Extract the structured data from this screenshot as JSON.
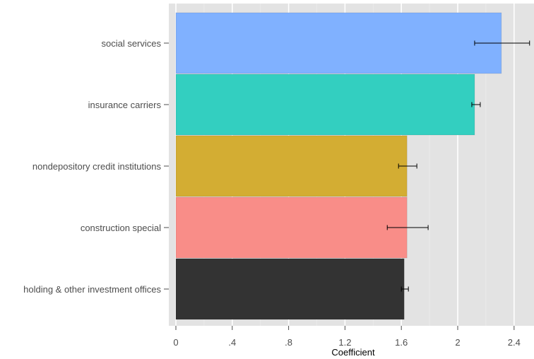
{
  "chart_data": {
    "type": "bar",
    "orientation": "horizontal",
    "title": "",
    "xlabel": "Coefficient",
    "ylabel": "",
    "xlim": [
      -0.05,
      2.55
    ],
    "x_ticks": [
      0,
      0.4,
      0.8,
      1.2,
      1.6,
      2,
      2.4
    ],
    "x_tick_labels": [
      "0",
      ".4",
      ".8",
      "1.2",
      "1.6",
      "2",
      "2.4"
    ],
    "grid": true,
    "legend": "none",
    "categories": [
      "social services",
      "insurance carriers",
      "nondepository credit institutions",
      "construction special",
      "holding & other investment offices"
    ],
    "values": [
      2.31,
      2.12,
      1.64,
      1.64,
      1.62
    ],
    "error_low": [
      2.12,
      2.1,
      1.58,
      1.5,
      1.6
    ],
    "error_high": [
      2.51,
      2.16,
      1.71,
      1.79,
      1.65
    ],
    "colors": [
      "#80b1ff",
      "#33cfc0",
      "#d3ad33",
      "#f98d88",
      "#333333"
    ]
  }
}
